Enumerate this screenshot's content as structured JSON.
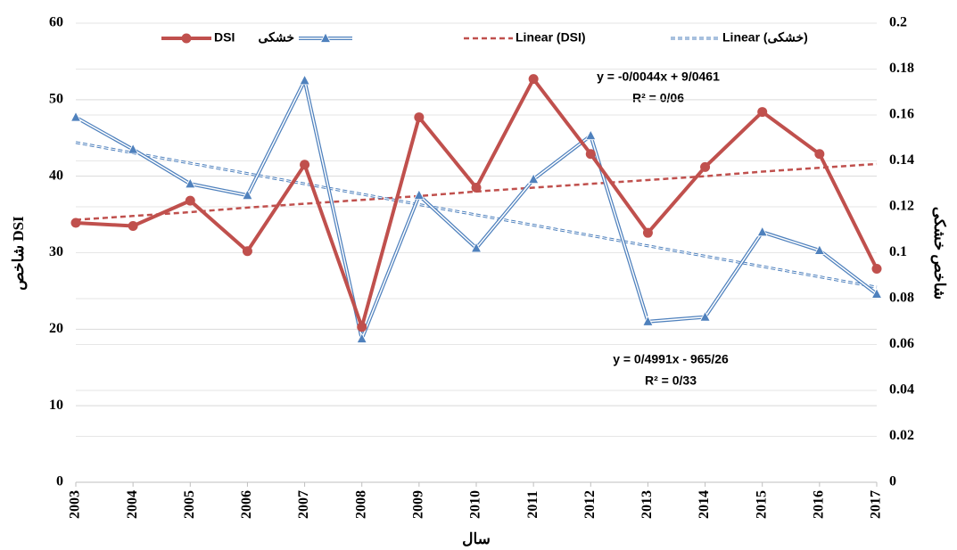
{
  "chart_data": {
    "type": "line",
    "xlabel": "سال",
    "ylabel": "شاخص DSI",
    "y2label": "شاخص خشکی",
    "categories": [
      "2003",
      "2004",
      "2005",
      "2006",
      "2007",
      "2008",
      "2009",
      "2010",
      "2011",
      "2012",
      "2013",
      "2014",
      "2015",
      "2016",
      "2017"
    ],
    "series": [
      {
        "name": "DSI",
        "color": "#c0504d",
        "style": "solid",
        "marker": "circle",
        "values": [
          33.9,
          33.5,
          36.8,
          30.2,
          41.5,
          20.3,
          47.7,
          38.5,
          52.7,
          42.9,
          32.6,
          41.2,
          48.4,
          42.9,
          27.9
        ]
      },
      {
        "name": "خشکی",
        "color": "#4f81bd",
        "style": "double",
        "marker": "triangle",
        "axis": "y2",
        "values": [
          0.159,
          0.145,
          0.13,
          0.125,
          0.175,
          0.0625,
          0.125,
          0.102,
          0.132,
          0.151,
          0.07,
          0.072,
          0.109,
          0.101,
          0.082
        ]
      },
      {
        "name": "Linear (DSI)",
        "color": "#c0504d",
        "style": "dashed",
        "values": [
          34.3,
          34.8,
          35.3,
          35.9,
          36.4,
          36.9,
          37.4,
          38.0,
          38.5,
          39.0,
          39.5,
          40.0,
          40.6,
          41.1,
          41.6
        ]
      },
      {
        "name": "Linear (خشکی)",
        "color": "#4f81bd",
        "style": "double-dashed",
        "axis": "y2",
        "values": [
          0.148,
          0.1435,
          0.139,
          0.1345,
          0.13,
          0.1255,
          0.121,
          0.1165,
          0.112,
          0.1075,
          0.103,
          0.0985,
          0.094,
          0.0895,
          0.085
        ]
      }
    ],
    "annotations": [
      "y = -0/0044x + 9/0461",
      "R² = 0/06",
      "y = 0/4991x - 965/26",
      "R² = 0/33"
    ],
    "ylim": [
      0,
      60
    ],
    "yticks": [
      0,
      10,
      20,
      30,
      40,
      50,
      60
    ],
    "y2lim": [
      0,
      0.2
    ],
    "y2ticks": [
      0,
      0.02,
      0.04,
      0.06,
      0.08,
      0.1,
      0.12,
      0.14,
      0.16,
      0.18,
      0.2
    ],
    "grid": true,
    "legend": "top"
  }
}
